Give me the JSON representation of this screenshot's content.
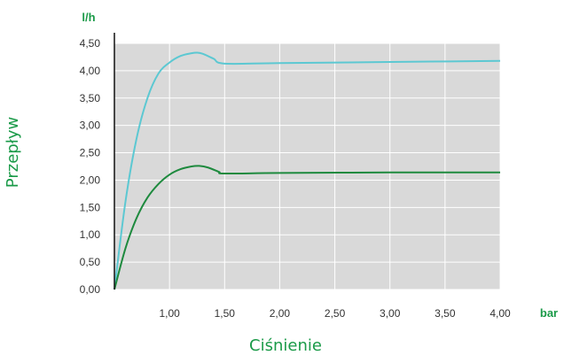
{
  "chart_data": {
    "type": "line",
    "title": "",
    "xlabel": "Ciśnienie",
    "ylabel": "Przepływ",
    "x_unit": "bar",
    "y_unit": "l/h",
    "xlim": [
      0.5,
      4.0
    ],
    "ylim": [
      0,
      4.5
    ],
    "x_ticks": [
      "1,00",
      "1,50",
      "2,00",
      "2,50",
      "3,00",
      "3,50",
      "4,00"
    ],
    "y_ticks": [
      "0,00",
      "0,50",
      "1,00",
      "1,50",
      "2,00",
      "2,50",
      "3,00",
      "3,50",
      "4,00",
      "4,50"
    ],
    "grid": true,
    "legend": "none",
    "series": [
      {
        "color": "#5cc8d2",
        "x": [
          0.5,
          0.6,
          0.7,
          0.8,
          0.9,
          1.0,
          1.1,
          1.2,
          1.25,
          1.3,
          1.4,
          1.5,
          2.0,
          3.0,
          4.0
        ],
        "y": [
          0.0,
          1.6,
          2.75,
          3.5,
          3.95,
          4.15,
          4.27,
          4.32,
          4.33,
          4.31,
          4.22,
          4.13,
          4.14,
          4.16,
          4.18
        ]
      },
      {
        "color": "#1e8a3e",
        "x": [
          0.5,
          0.6,
          0.7,
          0.8,
          0.9,
          1.0,
          1.1,
          1.2,
          1.27,
          1.35,
          1.45,
          1.5,
          2.0,
          3.0,
          4.0
        ],
        "y": [
          0.0,
          0.75,
          1.3,
          1.68,
          1.93,
          2.1,
          2.2,
          2.25,
          2.26,
          2.23,
          2.15,
          2.12,
          2.13,
          2.14,
          2.14
        ]
      }
    ]
  },
  "colors": {
    "plot_bg": "#d9d9d9",
    "grid": "#ffffff",
    "axis": "#111111",
    "label": "#1a9a48",
    "tick_text": "#333333"
  }
}
